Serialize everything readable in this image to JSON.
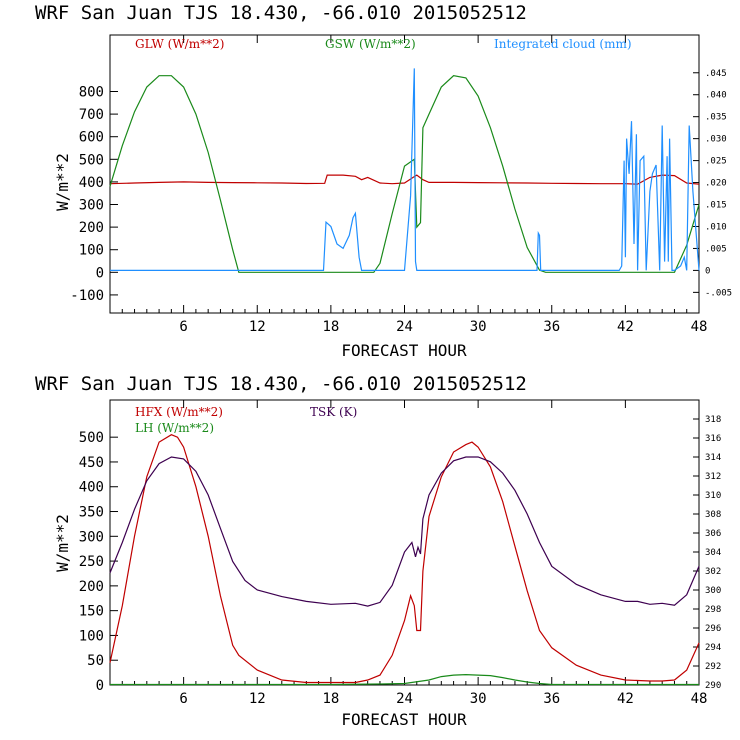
{
  "colors": {
    "red": "#c00000",
    "green": "#1a8a1a",
    "blue": "#1f8fff",
    "purple": "#3d0050",
    "axis": "#000000"
  },
  "chart_data": [
    {
      "type": "line",
      "title": "WRF   San Juan TJS  18.430, -66.010  2015052512",
      "xlabel": "FORECAST HOUR",
      "ylabel": "W/m**2",
      "xlim": [
        0,
        48
      ],
      "ylim": [
        -180,
        1050
      ],
      "xticks": [
        6,
        12,
        18,
        24,
        30,
        36,
        42,
        48
      ],
      "yticks": [
        -100,
        0,
        100,
        200,
        300,
        400,
        500,
        600,
        700,
        800
      ],
      "right_ylim": [
        -0.0097,
        0.0536
      ],
      "right_yticks": [
        ".045",
        ".040",
        ".035",
        ".030",
        ".025",
        ".020",
        ".015",
        ".010",
        ".005",
        "0",
        "-.005"
      ],
      "right_ytick_values": [
        0.045,
        0.04,
        0.035,
        0.03,
        0.025,
        0.02,
        0.015,
        0.01,
        0.005,
        0,
        -0.005
      ],
      "legend": [
        "GLW (W/m**2)",
        "GSW (W/m**2)",
        "Integrated cloud (mm)"
      ],
      "series": [
        {
          "name": "GLW (W/m**2)",
          "axis": "left",
          "color": "red",
          "x": [
            0,
            2,
            4,
            6,
            8,
            10,
            12,
            14,
            16,
            17.5,
            17.7,
            19,
            20,
            20.5,
            21,
            22,
            23,
            24,
            24.7,
            25,
            25.5,
            26,
            28,
            30,
            32,
            34,
            36,
            38,
            40,
            42,
            43,
            44,
            45,
            46,
            47,
            48
          ],
          "y": [
            392,
            395,
            398,
            400,
            398,
            397,
            396,
            395,
            393,
            394,
            430,
            430,
            425,
            410,
            420,
            395,
            392,
            395,
            420,
            430,
            410,
            398,
            398,
            397,
            396,
            395,
            394,
            393,
            392,
            392,
            390,
            420,
            430,
            428,
            395,
            390
          ]
        },
        {
          "name": "GSW (W/m**2)",
          "axis": "left",
          "color": "green",
          "x": [
            0,
            1,
            2,
            3,
            4,
            5,
            6,
            7,
            8,
            9,
            10,
            10.5,
            11,
            12,
            14,
            16,
            18,
            20,
            21.5,
            22,
            23,
            24,
            24.8,
            25,
            25.3,
            25.5,
            26,
            27,
            28,
            29,
            30,
            31,
            32,
            33,
            34,
            35,
            35.5,
            36,
            38,
            40,
            42,
            44,
            45,
            46,
            47,
            48
          ],
          "y": [
            380,
            560,
            710,
            820,
            870,
            870,
            820,
            700,
            530,
            320,
            100,
            0,
            0,
            0,
            0,
            0,
            0,
            0,
            0,
            40,
            260,
            470,
            500,
            200,
            220,
            640,
            700,
            820,
            870,
            860,
            780,
            640,
            470,
            280,
            110,
            10,
            0,
            0,
            0,
            0,
            0,
            0,
            0,
            0,
            120,
            300
          ]
        },
        {
          "name": "Integrated cloud (mm)",
          "axis": "right",
          "color": "blue",
          "x": [
            0,
            17.4,
            17.6,
            18,
            18.5,
            19,
            19.5,
            19.8,
            20,
            20.3,
            20.5,
            21,
            21.5,
            24,
            24.5,
            24.8,
            24.9,
            25,
            25.1,
            25.4,
            34.8,
            34.9,
            35,
            35.1,
            41.5,
            41.7,
            41.9,
            42,
            42.1,
            42.3,
            42.5,
            42.7,
            42.9,
            43,
            43.2,
            43.5,
            43.7,
            44,
            44.2,
            44.5,
            44.8,
            45,
            45.2,
            45.4,
            45.5,
            45.6,
            45.8,
            46,
            46.5,
            46.8,
            47,
            47.2,
            47.5,
            48
          ],
          "y": [
            0,
            0,
            0.011,
            0.01,
            0.006,
            0.005,
            0.008,
            0.012,
            0.013,
            0.003,
            0,
            0,
            0,
            0,
            0.017,
            0.046,
            0.002,
            0,
            0,
            0,
            0,
            0.0085,
            0.008,
            0,
            0,
            0.001,
            0.025,
            0.003,
            0.03,
            0.022,
            0.034,
            0.006,
            0.031,
            0,
            0.025,
            0.026,
            0,
            0.018,
            0.022,
            0.024,
            0,
            0.033,
            0.002,
            0.026,
            0.002,
            0.03,
            0,
            0,
            0.001,
            0.003,
            0,
            0.033,
            0.018,
            0
          ]
        }
      ]
    },
    {
      "type": "line",
      "title": "WRF   San Juan TJS  18.430, -66.010  2015052512",
      "xlabel": "FORECAST HOUR",
      "ylabel": "W/m**2",
      "xlim": [
        0,
        48
      ],
      "ylim": [
        0,
        575
      ],
      "xticks": [
        6,
        12,
        18,
        24,
        30,
        36,
        42,
        48
      ],
      "yticks": [
        0,
        50,
        100,
        150,
        200,
        250,
        300,
        350,
        400,
        450,
        500
      ],
      "right_ylim": [
        290,
        320
      ],
      "right_yticks": [
        "318",
        "316",
        "314",
        "312",
        "310",
        "308",
        "306",
        "304",
        "302",
        "300",
        "298",
        "296",
        "294",
        "292",
        "290"
      ],
      "right_ytick_values": [
        318,
        316,
        314,
        312,
        310,
        308,
        306,
        304,
        302,
        300,
        298,
        296,
        294,
        292,
        290
      ],
      "legend": [
        "HFX (W/m**2)",
        "LH  (W/m**2)",
        "TSK (K)"
      ],
      "series": [
        {
          "name": "HFX (W/m**2)",
          "axis": "left",
          "color": "red",
          "x": [
            0,
            1,
            2,
            3,
            4,
            5,
            5.5,
            6,
            7,
            8,
            9,
            10,
            10.5,
            12,
            14,
            16,
            18,
            20,
            21,
            22,
            23,
            24,
            24.5,
            24.8,
            25,
            25.3,
            25.5,
            26,
            27,
            28,
            29,
            29.5,
            30,
            31,
            32,
            33,
            34,
            35,
            36,
            38,
            40,
            42,
            44,
            45,
            46,
            47,
            48
          ],
          "y": [
            45,
            160,
            300,
            420,
            490,
            505,
            500,
            480,
            400,
            300,
            180,
            80,
            60,
            30,
            10,
            5,
            5,
            5,
            10,
            20,
            60,
            130,
            180,
            160,
            110,
            110,
            230,
            340,
            420,
            470,
            485,
            490,
            480,
            440,
            370,
            280,
            190,
            110,
            75,
            40,
            20,
            10,
            8,
            8,
            10,
            30,
            85
          ]
        },
        {
          "name": "LH  (W/m**2)",
          "axis": "left",
          "color": "green",
          "x": [
            0,
            6,
            12,
            18,
            22,
            24,
            26,
            27,
            28,
            29,
            30,
            31,
            32,
            33,
            34,
            35,
            36,
            42,
            48
          ],
          "y": [
            1,
            1,
            1,
            1,
            2,
            3,
            10,
            17,
            20,
            21,
            20,
            19,
            15,
            10,
            6,
            3,
            1,
            1,
            1
          ]
        },
        {
          "name": "TSK (K)",
          "axis": "right",
          "color": "purple",
          "x": [
            0,
            1,
            2,
            3,
            4,
            5,
            6,
            7,
            8,
            9,
            10,
            11,
            12,
            14,
            16,
            18,
            20,
            21,
            22,
            23,
            24,
            24.6,
            24.9,
            25.1,
            25.3,
            25.5,
            26,
            27,
            28,
            29,
            30,
            31,
            32,
            33,
            34,
            35,
            36,
            38,
            40,
            42,
            43,
            44,
            45,
            46,
            47,
            48
          ],
          "y": [
            301.8,
            305,
            308.5,
            311.5,
            313.3,
            314,
            313.8,
            312.5,
            310,
            306.5,
            303,
            301,
            300,
            299.3,
            298.8,
            298.5,
            298.6,
            298.3,
            298.7,
            300.5,
            304,
            305,
            303.5,
            304.5,
            303.8,
            307.5,
            310,
            312.3,
            313.6,
            314,
            314,
            313.5,
            312.3,
            310.5,
            308,
            305,
            302.5,
            300.6,
            299.5,
            298.8,
            298.8,
            298.5,
            298.6,
            298.4,
            299.5,
            302.5
          ]
        }
      ]
    }
  ]
}
